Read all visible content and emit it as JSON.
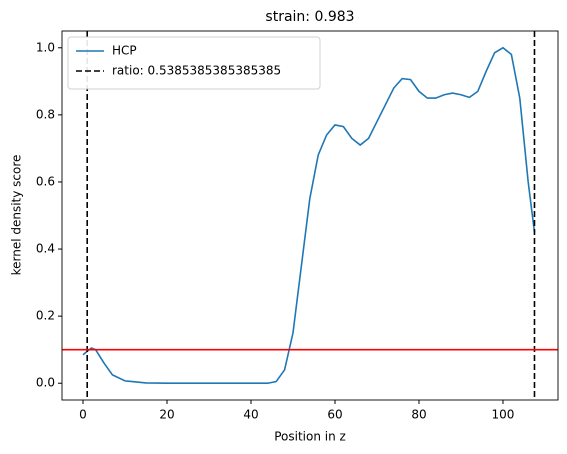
{
  "chart_data": {
    "type": "line",
    "title": "strain: 0.983",
    "x_label": "Position in z",
    "y_label": "kernel density score",
    "xlim": [
      -5,
      113.1
    ],
    "ylim": [
      -0.05,
      1.05
    ],
    "xticks": [
      0,
      20,
      40,
      60,
      80,
      100
    ],
    "yticks": [
      {
        "value": 0,
        "label": "0.0"
      },
      {
        "value": 0.2,
        "label": "0.2"
      },
      {
        "value": 0.4,
        "label": "0.4"
      },
      {
        "value": 0.6,
        "label": "0.6"
      },
      {
        "value": 0.8,
        "label": "0.8"
      },
      {
        "value": 1,
        "label": "1.0"
      }
    ],
    "legend": "upper left",
    "series": [
      {
        "name": "HCP",
        "color": "#1f77b4",
        "x": [
          0,
          2,
          3,
          5,
          7,
          10,
          15,
          20,
          30,
          44,
          46,
          48,
          50,
          52,
          54,
          56,
          58,
          60,
          62,
          64,
          66,
          68,
          70,
          72,
          74,
          76,
          78,
          80,
          82,
          84,
          86,
          88,
          90,
          92,
          94,
          96,
          98,
          100,
          102,
          104,
          106,
          107.5
        ],
        "values": [
          0.085,
          0.105,
          0.1,
          0.06,
          0.025,
          0.007,
          0.001,
          0,
          0,
          0,
          0.005,
          0.04,
          0.15,
          0.35,
          0.55,
          0.68,
          0.74,
          0.77,
          0.765,
          0.73,
          0.71,
          0.73,
          0.78,
          0.83,
          0.88,
          0.908,
          0.905,
          0.87,
          0.85,
          0.85,
          0.86,
          0.865,
          0.86,
          0.852,
          0.87,
          0.93,
          0.985,
          1.0,
          0.98,
          0.85,
          0.6,
          0.45
        ]
      }
    ],
    "vlines": {
      "name": "ratio: 0.5385385385385385",
      "color": "#000000",
      "x": [
        1,
        107.5
      ]
    },
    "hline": {
      "y": 0.1,
      "color": "#ff0000"
    }
  }
}
